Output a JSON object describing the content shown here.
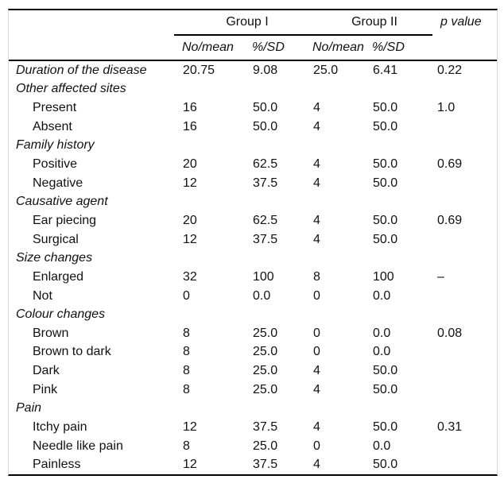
{
  "figure": {
    "kind": "statistics-table",
    "group_headers": [
      "Group I",
      "Group II",
      "p value"
    ],
    "subheaders": [
      "No/mean",
      "%/SD",
      "No/mean",
      "%/SD"
    ],
    "rows": [
      {
        "label": "Duration of the disease",
        "italic": true,
        "indent": false,
        "values": [
          "20.75",
          "9.08",
          "25.0",
          "6.41",
          "0.22"
        ]
      },
      {
        "label": "Other affected sites",
        "italic": true,
        "indent": false,
        "values": [
          "",
          "",
          "",
          "",
          ""
        ]
      },
      {
        "label": "Present",
        "italic": false,
        "indent": true,
        "values": [
          "16",
          "50.0",
          "4",
          "50.0",
          "1.0"
        ]
      },
      {
        "label": "Absent",
        "italic": false,
        "indent": true,
        "values": [
          "16",
          "50.0",
          "4",
          "50.0",
          ""
        ]
      },
      {
        "label": "Family history",
        "italic": true,
        "indent": false,
        "values": [
          "",
          "",
          "",
          "",
          ""
        ]
      },
      {
        "label": "Positive",
        "italic": false,
        "indent": true,
        "values": [
          "20",
          "62.5",
          "4",
          "50.0",
          "0.69"
        ]
      },
      {
        "label": "Negative",
        "italic": false,
        "indent": true,
        "values": [
          "12",
          "37.5",
          "4",
          "50.0",
          ""
        ]
      },
      {
        "label": "Causative agent",
        "italic": true,
        "indent": false,
        "values": [
          "",
          "",
          "",
          "",
          ""
        ]
      },
      {
        "label": "Ear piecing",
        "italic": false,
        "indent": true,
        "values": [
          "20",
          "62.5",
          "4",
          "50.0",
          "0.69"
        ]
      },
      {
        "label": "Surgical",
        "italic": false,
        "indent": true,
        "values": [
          "12",
          "37.5",
          "4",
          "50.0",
          ""
        ]
      },
      {
        "label": "Size changes",
        "italic": true,
        "indent": false,
        "values": [
          "",
          "",
          "",
          "",
          ""
        ]
      },
      {
        "label": "Enlarged",
        "italic": false,
        "indent": true,
        "values": [
          "32",
          "100",
          "8",
          "100",
          "–"
        ]
      },
      {
        "label": "Not",
        "italic": false,
        "indent": true,
        "values": [
          "0",
          "0.0",
          "0",
          "0.0",
          ""
        ]
      },
      {
        "label": "Colour changes",
        "italic": true,
        "indent": false,
        "values": [
          "",
          "",
          "",
          "",
          ""
        ]
      },
      {
        "label": "Brown",
        "italic": false,
        "indent": true,
        "values": [
          "8",
          "25.0",
          "0",
          "0.0",
          "0.08"
        ]
      },
      {
        "label": "Brown to dark",
        "italic": false,
        "indent": true,
        "values": [
          "8",
          "25.0",
          "0",
          "0.0",
          ""
        ]
      },
      {
        "label": "Dark",
        "italic": false,
        "indent": true,
        "values": [
          "8",
          "25.0",
          "4",
          "50.0",
          ""
        ]
      },
      {
        "label": "Pink",
        "italic": false,
        "indent": true,
        "values": [
          "8",
          "25.0",
          "4",
          "50.0",
          ""
        ]
      },
      {
        "label": "Pain",
        "italic": true,
        "indent": false,
        "values": [
          "",
          "",
          "",
          "",
          ""
        ]
      },
      {
        "label": "Itchy pain",
        "italic": false,
        "indent": true,
        "values": [
          "12",
          "37.5",
          "4",
          "50.0",
          "0.31"
        ]
      },
      {
        "label": "Needle like pain",
        "italic": false,
        "indent": true,
        "values": [
          "8",
          "25.0",
          "0",
          "0.0",
          ""
        ]
      },
      {
        "label": "Painless",
        "italic": false,
        "indent": true,
        "values": [
          "12",
          "37.5",
          "4",
          "50.0",
          ""
        ]
      }
    ],
    "colors": {
      "rule": "#000000",
      "frame_side": "#d9d9d9",
      "text": "#111111",
      "background": "#ffffff"
    }
  }
}
